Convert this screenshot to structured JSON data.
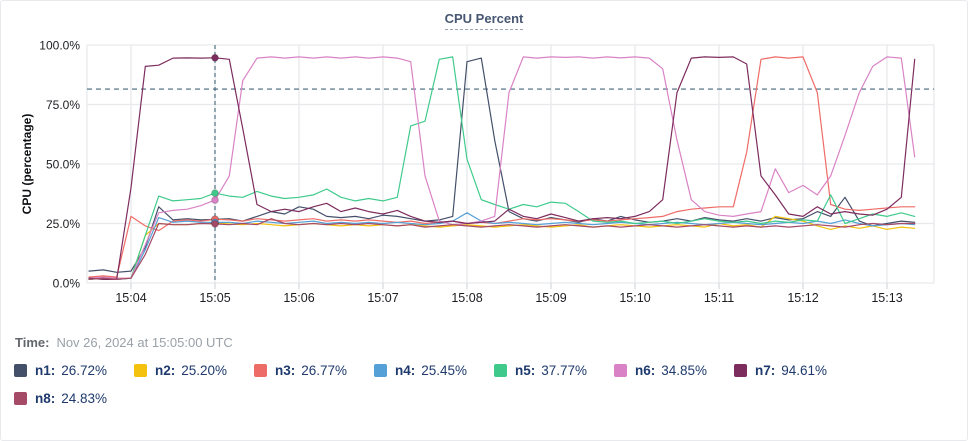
{
  "title": "CPU Percent",
  "footer": {
    "time_label": "Time:",
    "time_value": "Nov 26, 2024 at 15:05:00 UTC"
  },
  "legend": {
    "items": [
      {
        "name": "n1",
        "label": "n1:",
        "value": "26.72%"
      },
      {
        "name": "n2",
        "label": "n2:",
        "value": "25.20%"
      },
      {
        "name": "n3",
        "label": "n3:",
        "value": "26.77%"
      },
      {
        "name": "n4",
        "label": "n4:",
        "value": "25.45%"
      },
      {
        "name": "n5",
        "label": "n5:",
        "value": "37.77%"
      },
      {
        "name": "n6",
        "label": "n6:",
        "value": "34.85%"
      },
      {
        "name": "n7",
        "label": "n7:",
        "value": "94.61%"
      },
      {
        "name": "n8",
        "label": "n8:",
        "value": "24.83%"
      }
    ]
  },
  "colors": {
    "grid": "#e8e9ec",
    "tick_stub": "#d9dadd",
    "dashed_guides": "#44677b"
  },
  "chart_data": {
    "type": "line",
    "title": "CPU Percent",
    "xlabel": "",
    "ylabel": "CPU (percentage)",
    "ylim": [
      0,
      100
    ],
    "grid": true,
    "legend_position": "bottom",
    "threshold_line": 81.5,
    "crosshair_time": "15:05:00",
    "crosshair_t": 5,
    "y_ticks": [
      {
        "v": 0,
        "label": "0.0%"
      },
      {
        "v": 25,
        "label": "25.0%"
      },
      {
        "v": 50,
        "label": "50.0%"
      },
      {
        "v": 75,
        "label": "75.0%"
      },
      {
        "v": 100,
        "label": "100.0%"
      }
    ],
    "x_ticks": [
      {
        "t": 4,
        "label": "15:04"
      },
      {
        "t": 5,
        "label": "15:05"
      },
      {
        "t": 6,
        "label": "15:06"
      },
      {
        "t": 7,
        "label": "15:07"
      },
      {
        "t": 8,
        "label": "15:08"
      },
      {
        "t": 9,
        "label": "15:09"
      },
      {
        "t": 10,
        "label": "15:10"
      },
      {
        "t": 11,
        "label": "15:11"
      },
      {
        "t": 12,
        "label": "15:12"
      },
      {
        "t": 13,
        "label": "15:13"
      }
    ],
    "x": [
      3.5,
      3.67,
      3.83,
      4,
      4.17,
      4.33,
      4.5,
      4.67,
      4.83,
      5,
      5.17,
      5.33,
      5.5,
      5.67,
      5.83,
      6,
      6.17,
      6.33,
      6.5,
      6.67,
      6.83,
      7,
      7.17,
      7.33,
      7.5,
      7.67,
      7.83,
      8,
      8.17,
      8.33,
      8.5,
      8.67,
      8.83,
      9,
      9.17,
      9.33,
      9.5,
      9.67,
      9.83,
      10,
      10.17,
      10.33,
      10.5,
      10.67,
      10.83,
      11,
      11.17,
      11.33,
      11.5,
      11.67,
      11.83,
      12,
      12.17,
      12.33,
      12.5,
      12.67,
      12.83,
      13,
      13.17,
      13.33
    ],
    "series": [
      {
        "name": "n1",
        "color": "#44506a",
        "at_crosshair": 26.72,
        "values": [
          5,
          5.5,
          4.5,
          5,
          15,
          32,
          26.5,
          27,
          26.5,
          26.72,
          27,
          26,
          28,
          30,
          29,
          32,
          31,
          28,
          27.5,
          28,
          27,
          28.5,
          28,
          27,
          26,
          26.5,
          28,
          93,
          94.5,
          60,
          30,
          27,
          26,
          27.5,
          26.5,
          25.5,
          27,
          26,
          28,
          26.5,
          25.5,
          26,
          27,
          26,
          27.5,
          26.5,
          26,
          27,
          26,
          27.5,
          26.5,
          27,
          30,
          28,
          36,
          26,
          24,
          25,
          26,
          25.5
        ]
      },
      {
        "name": "n2",
        "color": "#f4c20d",
        "at_crosshair": 25.2,
        "values": [
          2,
          2.5,
          2,
          2,
          20,
          25,
          24.5,
          24.5,
          25,
          25.2,
          24.8,
          24.5,
          25,
          24.5,
          24,
          24.5,
          25,
          24.5,
          24,
          24.5,
          24,
          24.5,
          24,
          24.5,
          24,
          23.5,
          24,
          24.5,
          24,
          23.5,
          24,
          24.5,
          24,
          23.5,
          24,
          24.5,
          23.5,
          24,
          24.5,
          24,
          23.5,
          24,
          24.5,
          24,
          23.5,
          25,
          24,
          24.5,
          23.5,
          28,
          27,
          26,
          24,
          22.5,
          24,
          23,
          24,
          22.5,
          23.5,
          23
        ]
      },
      {
        "name": "n3",
        "color": "#ee6c67",
        "at_crosshair": 26.77,
        "values": [
          2.5,
          3,
          2.5,
          28,
          24,
          22,
          26,
          26.5,
          26,
          26.77,
          26.5,
          26,
          27,
          26.5,
          26,
          26.5,
          27,
          26,
          26.5,
          26,
          26.5,
          26,
          25.5,
          26,
          25,
          25.5,
          26,
          25,
          25.5,
          25,
          26,
          27,
          26.5,
          27,
          26.5,
          26,
          26.5,
          26,
          26.5,
          27,
          27.5,
          28,
          30,
          31,
          31.5,
          32,
          32,
          55,
          94,
          95,
          94.5,
          95,
          80,
          33,
          31,
          30.5,
          31,
          31.5,
          32,
          32
        ]
      },
      {
        "name": "n4",
        "color": "#55a0d6",
        "at_crosshair": 25.45,
        "values": [
          1.5,
          2,
          1.5,
          2,
          14,
          27.5,
          25.5,
          26,
          25.5,
          25.45,
          25.5,
          25,
          26,
          25.5,
          25,
          25.5,
          26,
          25,
          25.5,
          25,
          25.5,
          25,
          25.5,
          25,
          24.5,
          25,
          26,
          29.5,
          26,
          25,
          25.5,
          25,
          24.5,
          25,
          25.5,
          25,
          24.5,
          25,
          25.5,
          25,
          24.5,
          25,
          25.5,
          25,
          24.5,
          25,
          25.5,
          25,
          24.5,
          25,
          25.5,
          25,
          26,
          25,
          26.5,
          25,
          24,
          24.5,
          25,
          24.5
        ]
      },
      {
        "name": "n5",
        "color": "#3fca8c",
        "at_crosshair": 37.77,
        "values": [
          1.5,
          2,
          1.5,
          2,
          20,
          36.5,
          34.5,
          35,
          35.5,
          37.77,
          36.5,
          36,
          38.5,
          36.5,
          35.5,
          36,
          37,
          39.5,
          36,
          34.5,
          35.5,
          34.5,
          36,
          66,
          68,
          94,
          95,
          52,
          35,
          33,
          31,
          33,
          32,
          34,
          33.5,
          30,
          26,
          25.5,
          26,
          25,
          25.5,
          26,
          25,
          26,
          27,
          26,
          25.5,
          26,
          25,
          26,
          25.5,
          26.5,
          26,
          37,
          25,
          27,
          29,
          28,
          29.5,
          28
        ]
      },
      {
        "name": "n6",
        "color": "#d983c6",
        "at_crosshair": 34.85,
        "values": [
          2,
          2.5,
          2,
          2,
          16,
          29.5,
          30.5,
          31,
          32.5,
          34.85,
          45,
          85,
          94.5,
          95,
          94.5,
          95,
          94.5,
          95,
          94.5,
          95,
          94.5,
          95,
          94.5,
          93,
          45,
          26,
          24.5,
          25,
          26,
          28,
          80,
          95,
          94.5,
          95,
          94.8,
          95,
          94.5,
          95,
          94.6,
          95,
          94.5,
          90,
          60,
          35,
          30,
          28.5,
          28,
          29,
          30,
          48,
          38,
          41,
          37,
          45,
          62,
          80,
          91,
          95,
          94.5,
          53
        ]
      },
      {
        "name": "n7",
        "color": "#7d2c5e",
        "at_crosshair": 94.61,
        "values": [
          2,
          1.5,
          1.5,
          40,
          91,
          91.5,
          94.5,
          94.6,
          94.5,
          94.61,
          94,
          65,
          33,
          30,
          31,
          30,
          32,
          33.5,
          30,
          31.5,
          30,
          29,
          30.5,
          28,
          26,
          25.5,
          26,
          25,
          25.5,
          26,
          31,
          28,
          27,
          29,
          27.5,
          26,
          27,
          27.5,
          27,
          28,
          30,
          35,
          80,
          94.5,
          95,
          94.8,
          95,
          92,
          45,
          37,
          29,
          28,
          32,
          29,
          30,
          29,
          28.5,
          31,
          36,
          94
        ]
      },
      {
        "name": "n8",
        "color": "#a54a67",
        "at_crosshair": 24.83,
        "values": [
          1.5,
          2,
          1.5,
          2,
          12,
          25,
          24.5,
          24.5,
          25,
          24.83,
          24.5,
          25,
          24.5,
          27,
          25,
          24.5,
          25,
          24.5,
          25,
          24.5,
          25,
          24.5,
          24,
          24.5,
          23.5,
          24,
          24.5,
          24,
          23.5,
          24,
          24.5,
          24,
          23.5,
          24,
          24.5,
          24,
          23.5,
          24,
          23.5,
          24,
          24.5,
          24,
          23.5,
          24,
          24.5,
          24,
          23.5,
          24,
          23.5,
          24,
          23.5,
          24,
          24.5,
          24,
          23.5,
          24.5,
          25,
          24.5,
          25,
          25
        ]
      }
    ]
  }
}
